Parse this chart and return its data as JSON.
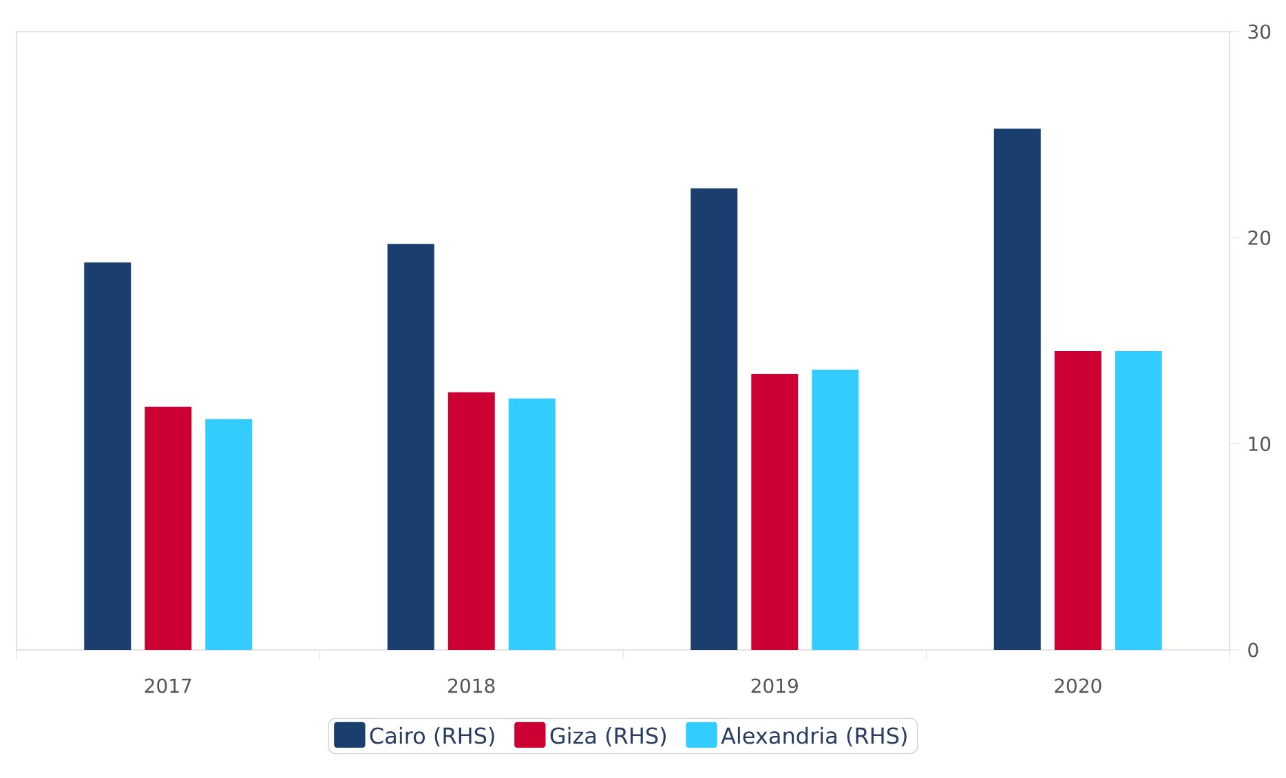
{
  "chart_data": {
    "type": "bar",
    "categories": [
      "2017",
      "2018",
      "2019",
      "2020"
    ],
    "series": [
      {
        "name": "Cairo (RHS)",
        "color": "#1a3e6e",
        "values": [
          18.8,
          19.7,
          22.4,
          25.3
        ]
      },
      {
        "name": "Giza (RHS)",
        "color": "#cc0033",
        "values": [
          11.8,
          12.5,
          13.4,
          14.5
        ]
      },
      {
        "name": "Alexandria (RHS)",
        "color": "#33ccff",
        "values": [
          11.2,
          12.2,
          13.6,
          14.5
        ]
      }
    ],
    "ylim": [
      0,
      30
    ],
    "yticks": [
      0,
      10,
      20,
      30
    ],
    "grid": false,
    "legend": "bottom"
  }
}
